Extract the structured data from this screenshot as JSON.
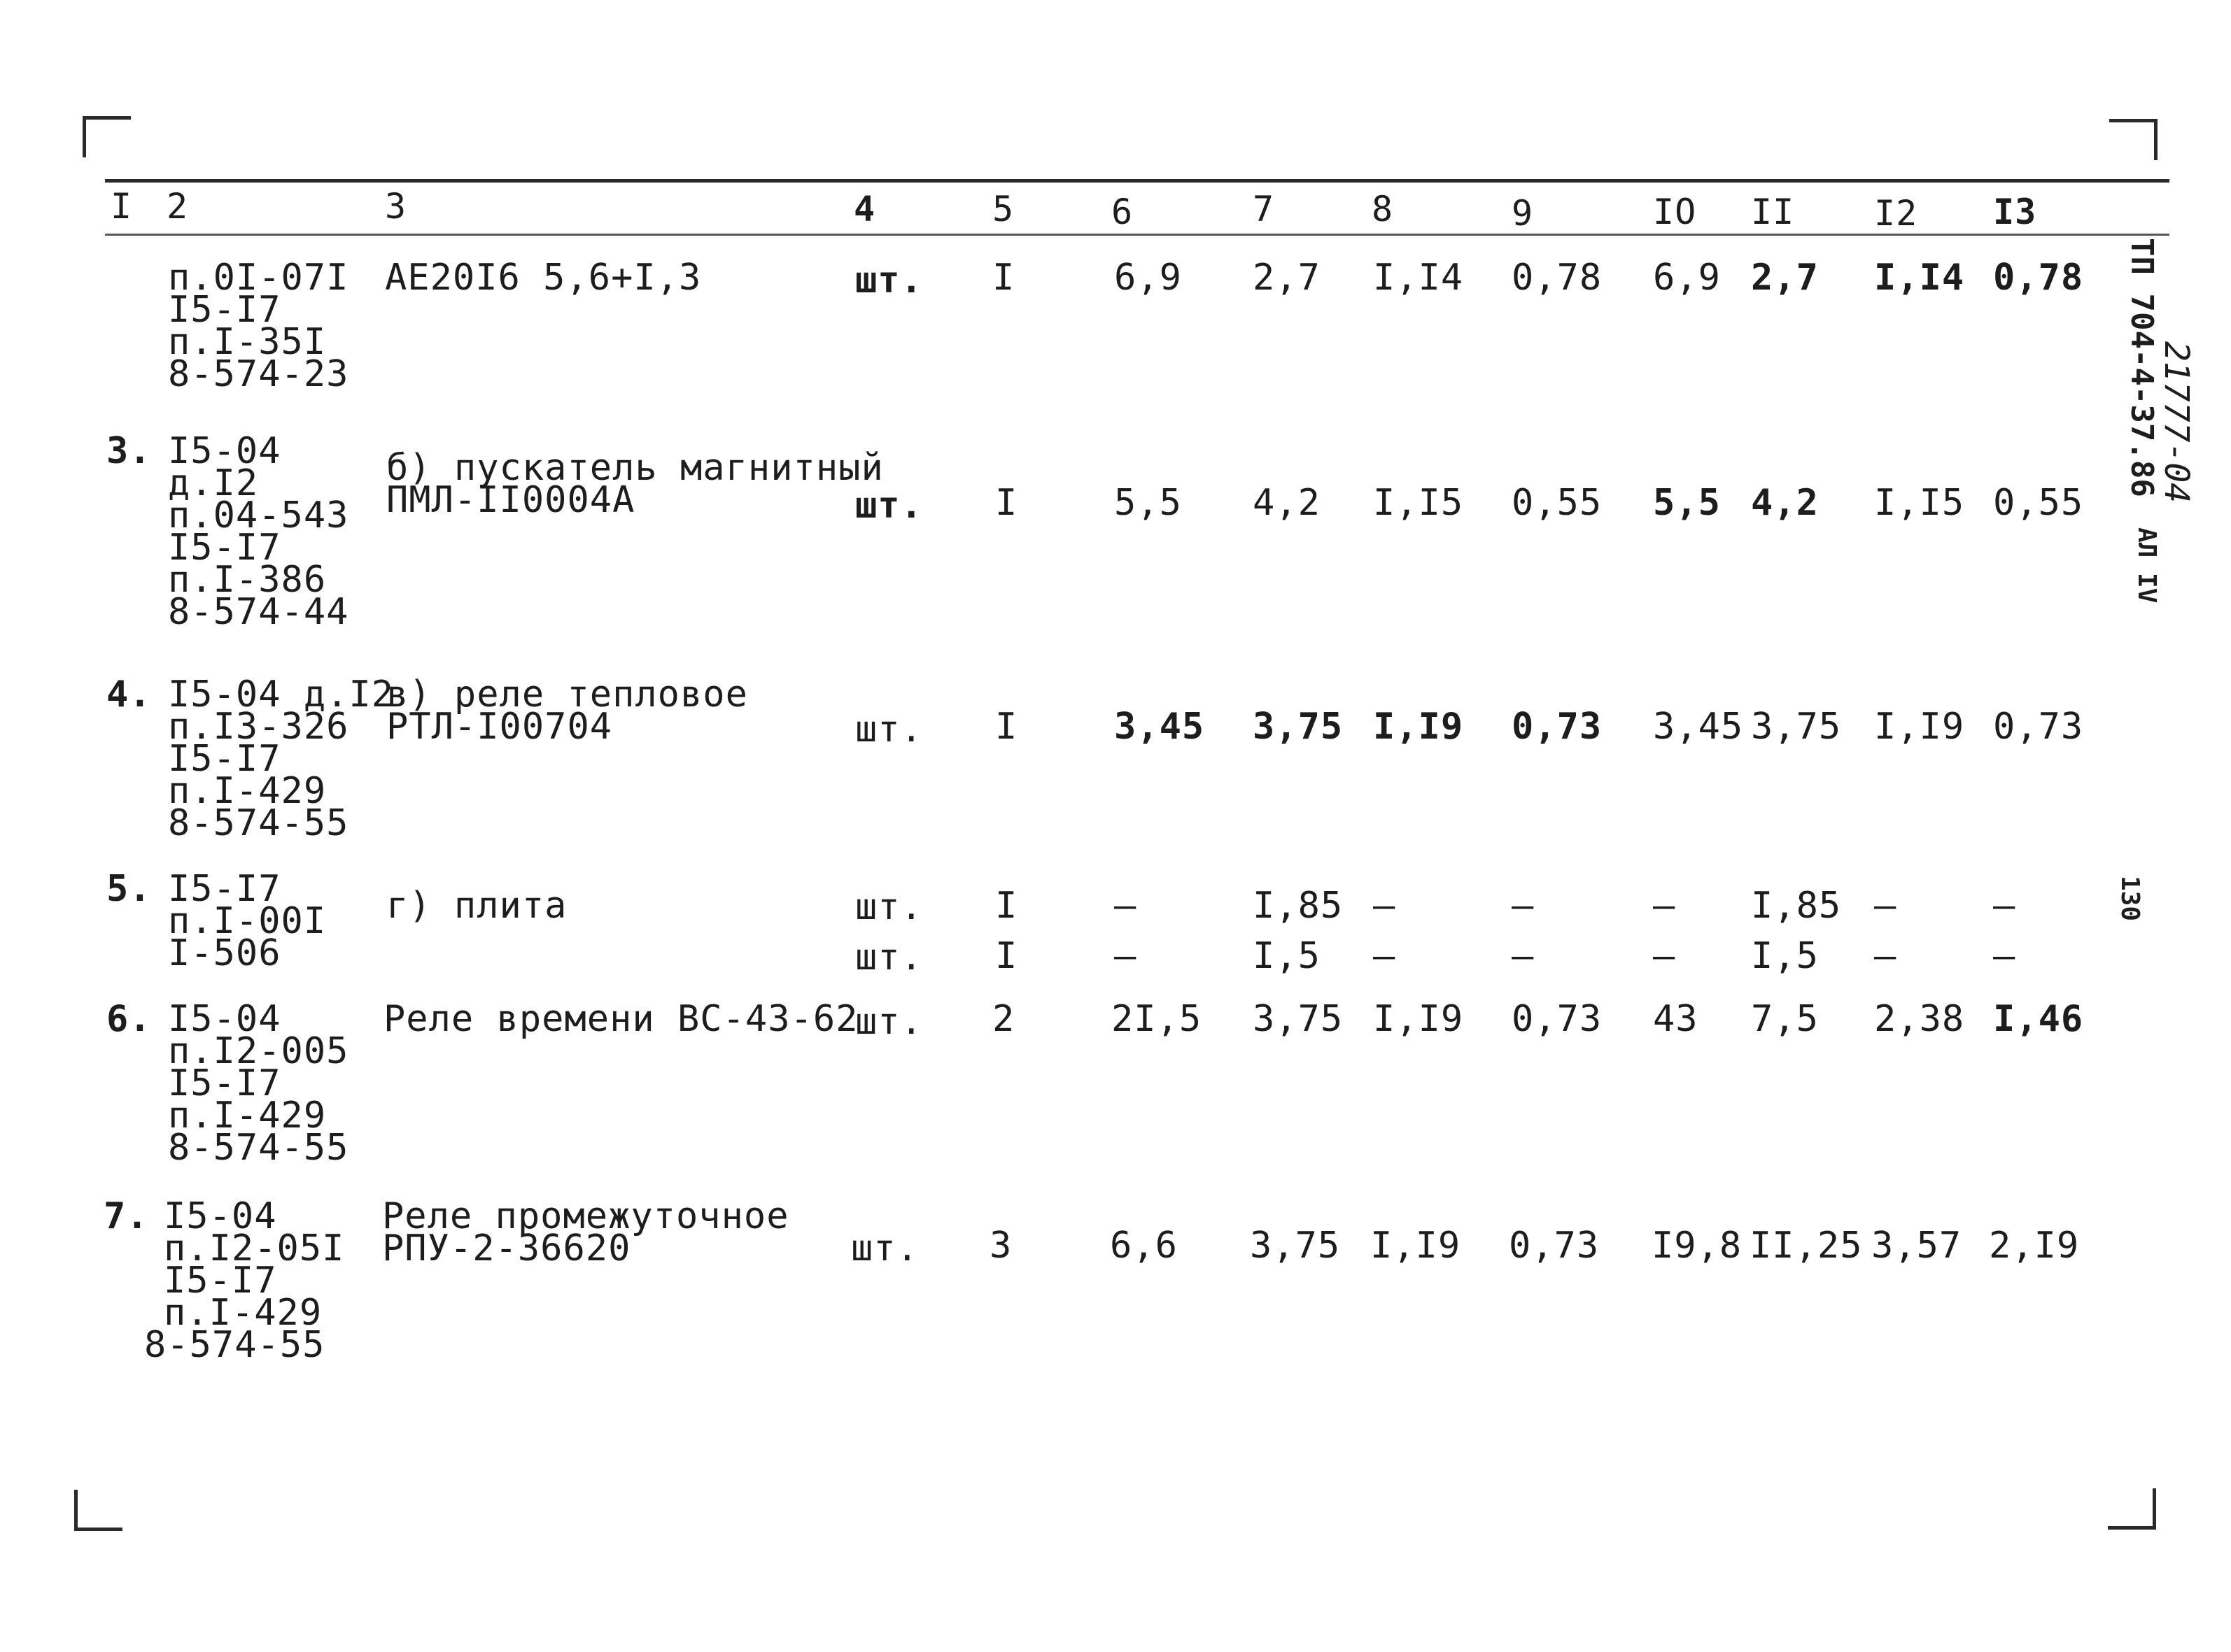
{
  "side_labels": {
    "doc_code": "ТП 704-4-37.86",
    "stamp_number": "21777-04",
    "album": "АЛ IV",
    "page_number": "130"
  },
  "table": {
    "headers": [
      "I",
      "2",
      "3",
      "4",
      "5",
      "6",
      "7",
      "8",
      "9",
      "IO",
      "II",
      "I2",
      "I3"
    ],
    "rows": [
      {
        "num": "",
        "refs": [
          "п.0I-07I",
          "I5-I7",
          "п.I-35I",
          "8-574-23"
        ],
        "name": [
          "АЕ20I6 5,6+I,3"
        ],
        "unit": "шт.",
        "qty": "I",
        "c6": "6,9",
        "c7": "2,7",
        "c8": "I,I4",
        "c9": "0,78",
        "c10": "6,9",
        "c11": "2,7",
        "c12": "I,I4",
        "c13": "0,78"
      },
      {
        "num": "3.",
        "refs": [
          "I5-04",
          "д.I2",
          "п.04-543",
          "I5-I7",
          "п.I-386",
          "8-574-44"
        ],
        "name": [
          "б) пускатель магнитный",
          "ПМЛ-II0004А"
        ],
        "unit": "шт.",
        "qty": "I",
        "c6": "5,5",
        "c7": "4,2",
        "c8": "I,I5",
        "c9": "0,55",
        "c10": "5,5",
        "c11": "4,2",
        "c12": "I,I5",
        "c13": "0,55"
      },
      {
        "num": "4.",
        "refs": [
          "I5-04 д.I2",
          "п.I3-326",
          "I5-I7",
          "п.I-429",
          "8-574-55"
        ],
        "name": [
          "в) реле тепловое",
          "РТЛ-I00704"
        ],
        "unit": "шт.",
        "qty": "I",
        "c6": "3,45",
        "c7": "3,75",
        "c8": "I,I9",
        "c9": "0,73",
        "c10": "3,45",
        "c11": "3,75",
        "c12": "I,I9",
        "c13": "0,73"
      },
      {
        "num": "5.",
        "refs": [
          "I5-I7",
          "п.I-00I",
          "I-506"
        ],
        "name": [
          "г) плита"
        ],
        "lines": [
          {
            "unit": "шт.",
            "qty": "I",
            "c6": "–",
            "c7": "I,85",
            "c8": "–",
            "c9": "–",
            "c10": "–",
            "c11": "I,85",
            "c12": "–",
            "c13": "–"
          },
          {
            "unit": "шт.",
            "qty": "I",
            "c6": "–",
            "c7": "I,5",
            "c8": "–",
            "c9": "–",
            "c10": "–",
            "c11": "I,5",
            "c12": "–",
            "c13": "–"
          }
        ]
      },
      {
        "num": "6.",
        "refs": [
          "I5-04",
          "п.I2-005",
          "I5-I7",
          "п.I-429",
          "8-574-55"
        ],
        "name": [
          "Реле времени ВС-43-62"
        ],
        "unit": "шт.",
        "qty": "2",
        "c6": "2I,5",
        "c7": "3,75",
        "c8": "I,I9",
        "c9": "0,73",
        "c10": "43",
        "c11": "7,5",
        "c12": "2,38",
        "c13": "I,46"
      },
      {
        "num": "7.",
        "refs": [
          "I5-04",
          "п.I2-05I",
          "I5-I7",
          "п.I-429",
          "8-574-55"
        ],
        "name": [
          "Реле промежуточное",
          "РПУ-2-36620"
        ],
        "unit": "шт.",
        "qty": "3",
        "c6": "6,6",
        "c7": "3,75",
        "c8": "I,I9",
        "c9": "0,73",
        "c10": "I9,8",
        "c11": "II,25",
        "c12": "3,57",
        "c13": "2,I9"
      }
    ]
  }
}
